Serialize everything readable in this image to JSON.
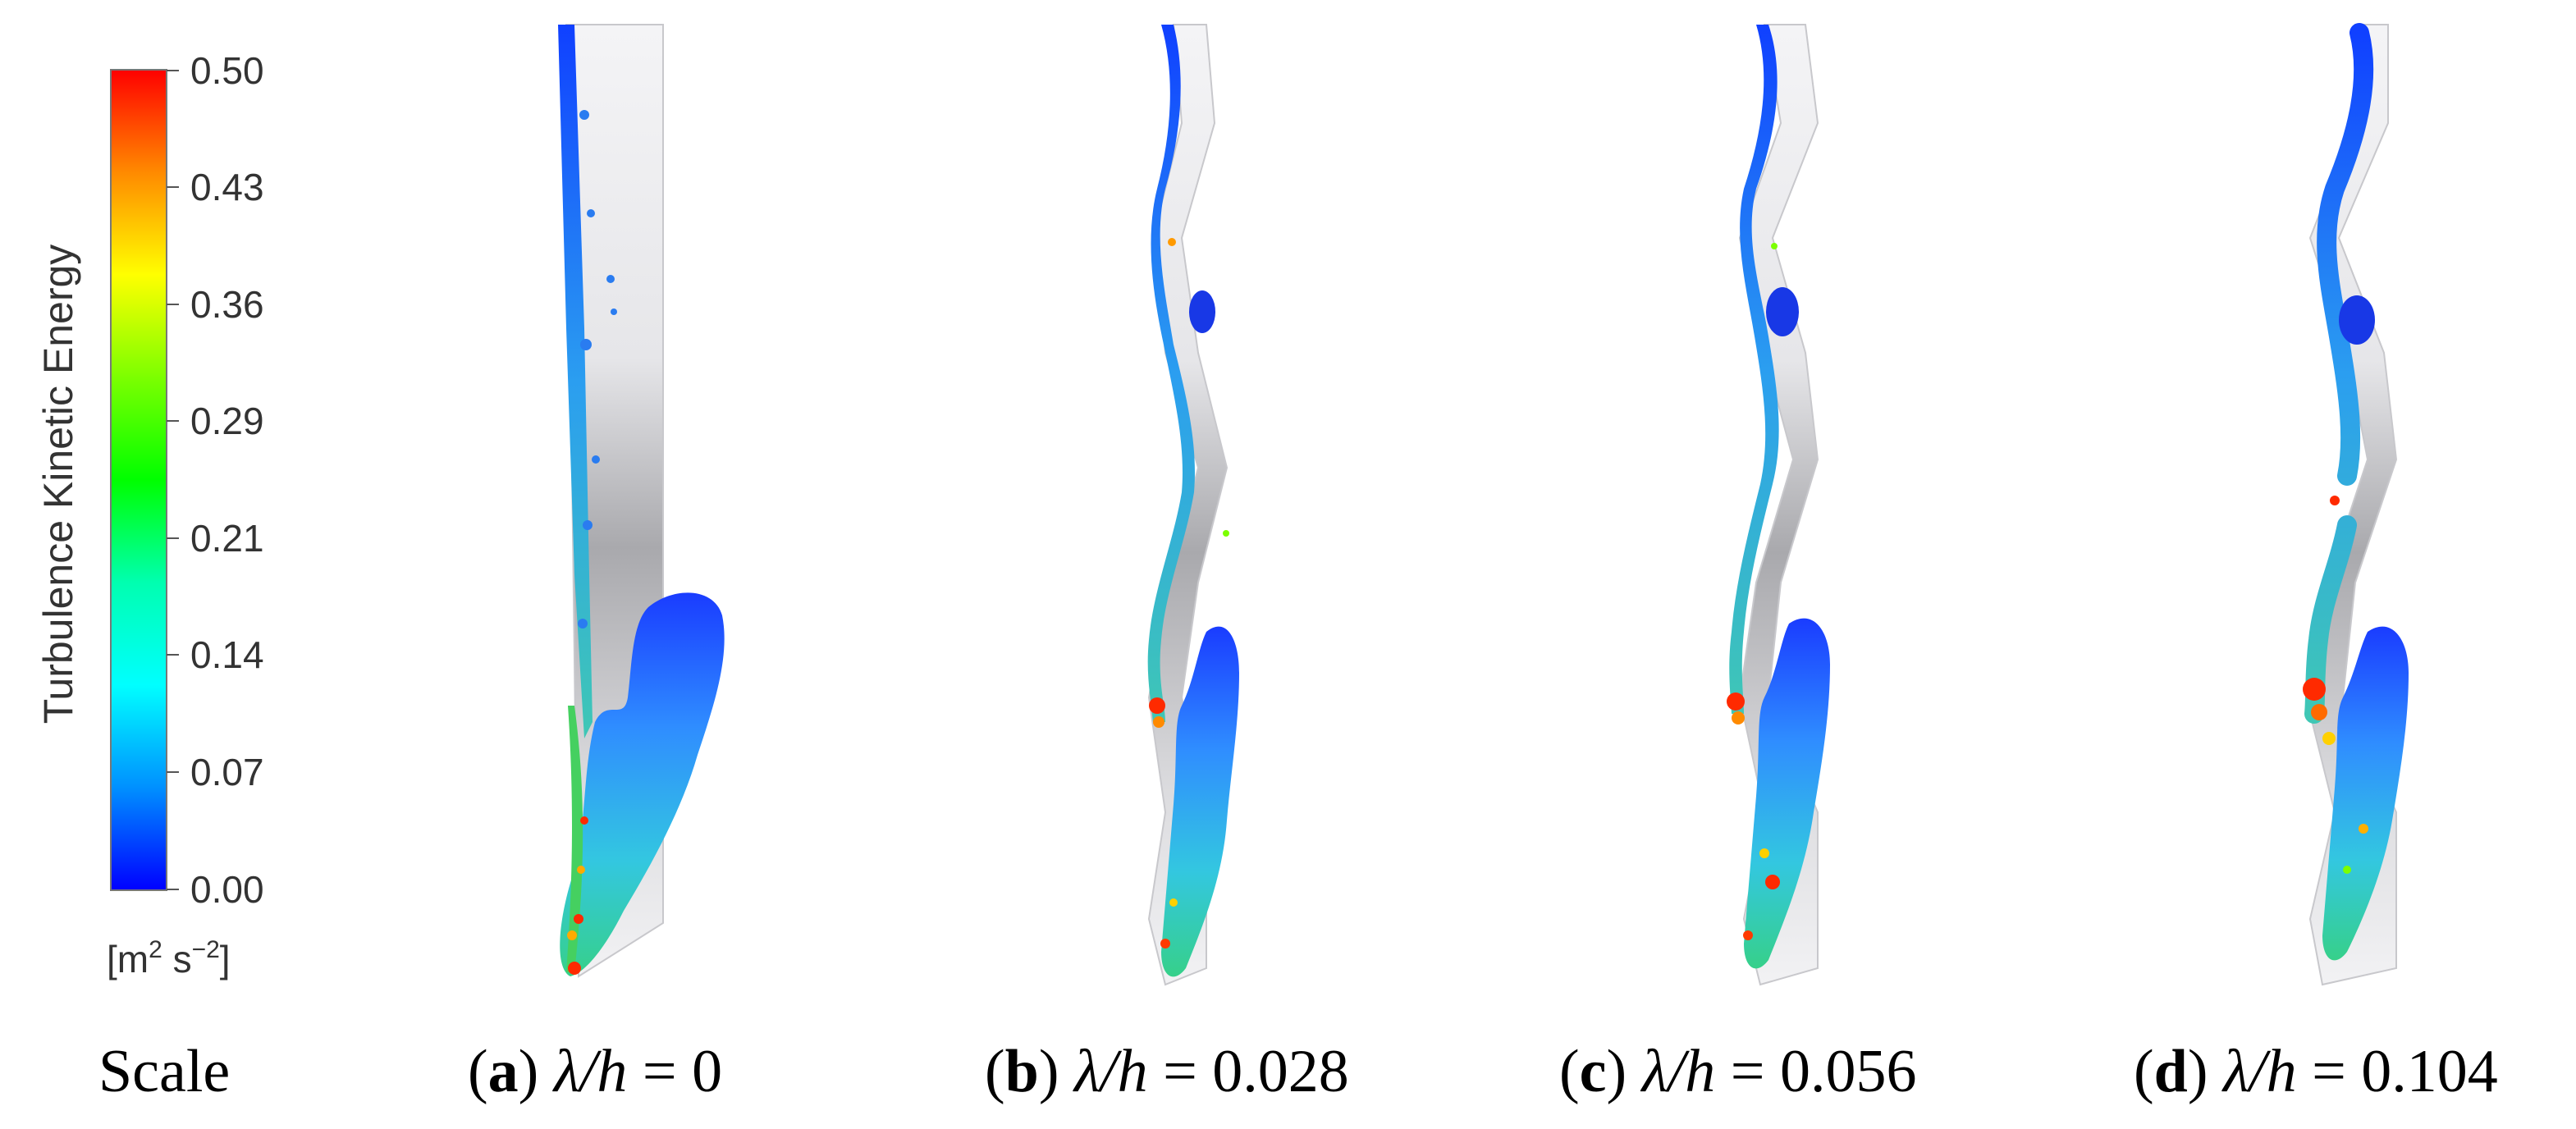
{
  "colorbar": {
    "title": "Turbulence Kinetic Energy",
    "unit_base": "[m",
    "unit_sup1": "2",
    "unit_mid": " s",
    "unit_sup2": "−2",
    "unit_end": "]",
    "ticks": [
      "0.50",
      "0.43",
      "0.36",
      "0.29",
      "0.21",
      "0.14",
      "0.07",
      "0.00"
    ],
    "colors": [
      "#ff0000",
      "#ff8a00",
      "#ffff00",
      "#7cff00",
      "#00ff00",
      "#00ffb0",
      "#00ffff",
      "#0090ff",
      "#0000ff"
    ]
  },
  "captions": {
    "scale": "Scale",
    "a_letter": "a",
    "a_expr": "λ/h",
    "a_value": " = 0",
    "b_letter": "b",
    "b_expr": "λ/h",
    "b_value": " = 0.028",
    "c_letter": "c",
    "c_expr": "λ/h",
    "c_value": " = 0.056",
    "d_letter": "d",
    "d_expr": "λ/h",
    "d_value": " = 0.104"
  }
}
